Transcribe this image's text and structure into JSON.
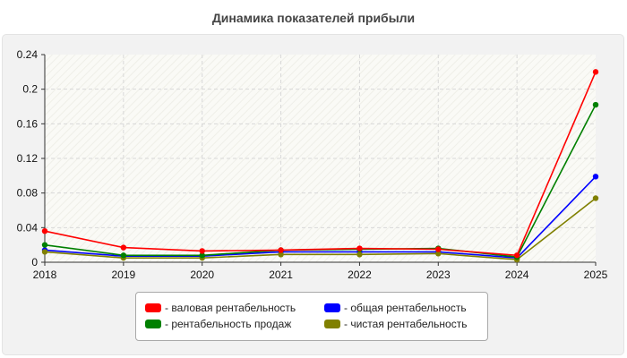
{
  "chart_data": {
    "type": "line",
    "title": "Динамика показателей прибыли",
    "x": [
      "2018",
      "2019",
      "2020",
      "2021",
      "2022",
      "2023",
      "2024",
      "2025"
    ],
    "ylim": [
      0,
      0.24
    ],
    "yticks": [
      "0",
      "0.04",
      "0.08",
      "0.12",
      "0.16",
      "0.2",
      "0.24"
    ],
    "grid": true,
    "legend_position": "bottom",
    "series": [
      {
        "name": "- валовая рентабельность",
        "color": "#ff0000",
        "values": [
          0.036,
          0.017,
          0.013,
          0.014,
          0.016,
          0.015,
          0.008,
          0.22
        ]
      },
      {
        "name": "- общая рентабельность",
        "color": "#0000ff",
        "values": [
          0.014,
          0.007,
          0.007,
          0.012,
          0.012,
          0.012,
          0.005,
          0.099
        ]
      },
      {
        "name": "- рентабельность продаж",
        "color": "#008000",
        "values": [
          0.02,
          0.008,
          0.008,
          0.014,
          0.015,
          0.016,
          0.006,
          0.182
        ]
      },
      {
        "name": "- чистая рентабельность",
        "color": "#808000",
        "values": [
          0.012,
          0.005,
          0.005,
          0.009,
          0.009,
          0.01,
          0.003,
          0.074
        ]
      }
    ]
  }
}
